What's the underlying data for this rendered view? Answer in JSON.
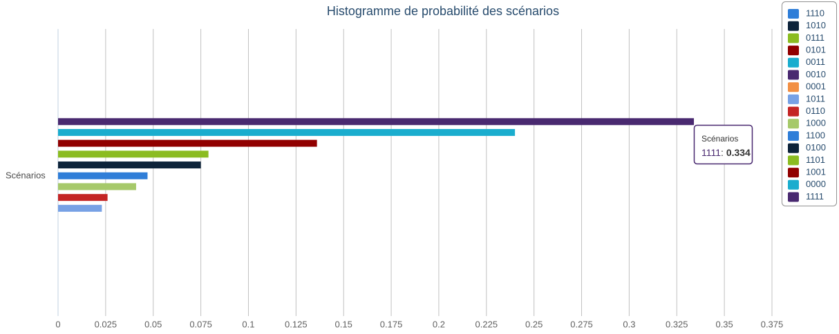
{
  "chart_data": {
    "type": "bar",
    "title": "Histogramme de probabilité des scénarios",
    "categories": [
      "Scénarios"
    ],
    "series": [
      {
        "name": "1110",
        "color": "#2f7ed8",
        "values": [
          0
        ]
      },
      {
        "name": "1010",
        "color": "#0d233a",
        "values": [
          0
        ]
      },
      {
        "name": "0111",
        "color": "#8bbc21",
        "values": [
          0
        ]
      },
      {
        "name": "0101",
        "color": "#910000",
        "values": [
          0
        ]
      },
      {
        "name": "0011",
        "color": "#1aadce",
        "values": [
          0
        ]
      },
      {
        "name": "0010",
        "color": "#492970",
        "values": [
          0
        ]
      },
      {
        "name": "0001",
        "color": "#f28f43",
        "values": [
          0
        ]
      },
      {
        "name": "1011",
        "color": "#77a1e5",
        "values": [
          0.023
        ]
      },
      {
        "name": "0110",
        "color": "#c42525",
        "values": [
          0.026
        ]
      },
      {
        "name": "1000",
        "color": "#a6c96a",
        "values": [
          0.041
        ]
      },
      {
        "name": "1100",
        "color": "#2f7ed8",
        "values": [
          0.047
        ]
      },
      {
        "name": "0100",
        "color": "#0d233a",
        "values": [
          0.075
        ]
      },
      {
        "name": "1101",
        "color": "#8bbc21",
        "values": [
          0.079
        ]
      },
      {
        "name": "1001",
        "color": "#910000",
        "values": [
          0.136
        ]
      },
      {
        "name": "0000",
        "color": "#1aadce",
        "values": [
          0.24
        ]
      },
      {
        "name": "1111",
        "color": "#492970",
        "values": [
          0.334
        ]
      }
    ],
    "xlim": [
      0,
      0.375
    ],
    "xticks": [
      0,
      0.025,
      0.05,
      0.075,
      0.1,
      0.125,
      0.15,
      0.175,
      0.2,
      0.225,
      0.25,
      0.275,
      0.3,
      0.325,
      0.35,
      0.375
    ],
    "grid": true,
    "legend": "top-right",
    "tooltip_separator": ":"
  }
}
